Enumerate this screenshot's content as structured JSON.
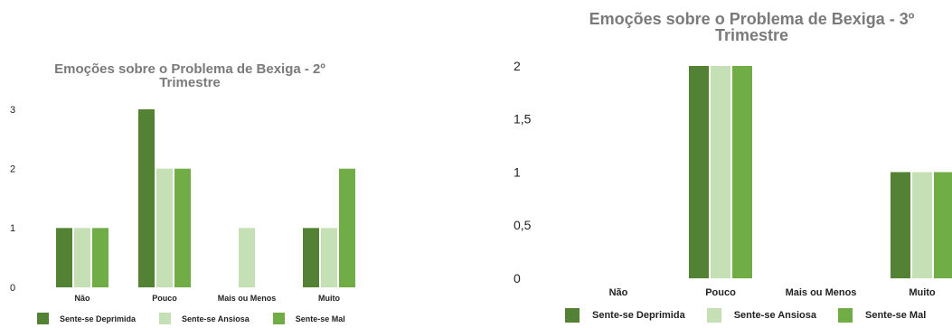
{
  "charts": [
    {
      "id": "left",
      "title_line1": "Emoções sobre o Problema de Bexiga - 2º",
      "title_line2": "Trimestre"
    },
    {
      "id": "right",
      "title_line1": "Emoções sobre o Problema de Bexiga - 3º",
      "title_line2": "Trimestre"
    }
  ],
  "legend": [
    {
      "label": "Sente-se Deprimida",
      "color": "#548235"
    },
    {
      "label": "Sente-se Ansiosa",
      "color": "#c5e0b4"
    },
    {
      "label": "Sente-se Mal",
      "color": "#70ad47"
    }
  ],
  "chart_data": [
    {
      "type": "bar",
      "title": "Emoções sobre o Problema de Bexiga - 2º Trimestre",
      "categories": [
        "Não",
        "Pouco",
        "Mais ou Menos",
        "Muito"
      ],
      "series": [
        {
          "name": "Sente-se Deprimida",
          "values": [
            1,
            3,
            0,
            1
          ]
        },
        {
          "name": "Sente-se Ansiosa",
          "values": [
            1,
            2,
            1,
            1
          ]
        },
        {
          "name": "Sente-se Mal",
          "values": [
            1,
            2,
            0,
            2
          ]
        }
      ],
      "ylim": [
        0,
        3
      ],
      "yticks": [
        "0",
        "1",
        "2",
        "3"
      ],
      "grid": false,
      "legend_position": "bottom"
    },
    {
      "type": "bar",
      "title": "Emoções sobre o Problema de Bexiga - 3º Trimestre",
      "categories": [
        "Não",
        "Pouco",
        "Mais ou Menos",
        "Muito"
      ],
      "series": [
        {
          "name": "Sente-se Deprimida",
          "values": [
            0,
            2,
            0,
            1
          ]
        },
        {
          "name": "Sente-se Ansiosa",
          "values": [
            0,
            2,
            0,
            1
          ]
        },
        {
          "name": "Sente-se Mal",
          "values": [
            0,
            2,
            0,
            1
          ]
        }
      ],
      "ylim": [
        0,
        2
      ],
      "yticks": [
        "0",
        "0,5",
        "1",
        "1,5",
        "2"
      ],
      "grid": false,
      "legend_position": "bottom"
    }
  ]
}
